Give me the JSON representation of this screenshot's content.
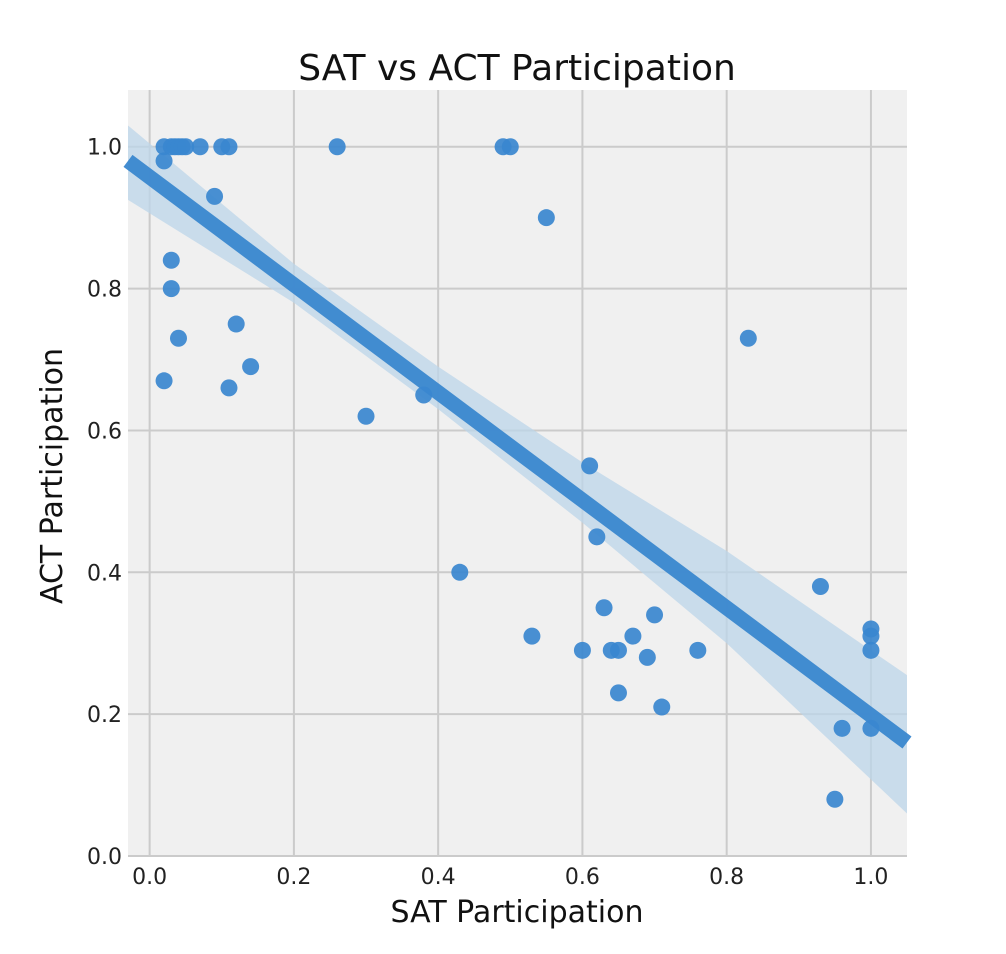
{
  "chart_data": {
    "type": "scatter",
    "title": "SAT vs ACT Participation",
    "xlabel": "SAT Participation",
    "ylabel": "ACT Participation",
    "xlim": [
      -0.03,
      1.05
    ],
    "ylim": [
      0.0,
      1.08
    ],
    "xticks": [
      0.0,
      0.2,
      0.4,
      0.6,
      0.8,
      1.0
    ],
    "xtick_labels": [
      "0.0",
      "0.2",
      "0.4",
      "0.6",
      "0.8",
      "1.0"
    ],
    "yticks": [
      0.0,
      0.2,
      0.4,
      0.6,
      0.8,
      1.0
    ],
    "ytick_labels": [
      "0.0",
      "0.2",
      "0.4",
      "0.6",
      "0.8",
      "1.0"
    ],
    "grid": true,
    "colors": {
      "background": "#f0f0f0",
      "point": "#3a87cf",
      "regression_line": "#3a87cf",
      "confidence_band": "#bcd6ea"
    },
    "points": [
      {
        "x": 0.02,
        "y": 1.0
      },
      {
        "x": 0.03,
        "y": 1.0
      },
      {
        "x": 0.035,
        "y": 1.0
      },
      {
        "x": 0.04,
        "y": 1.0
      },
      {
        "x": 0.045,
        "y": 1.0
      },
      {
        "x": 0.05,
        "y": 1.0
      },
      {
        "x": 0.07,
        "y": 1.0
      },
      {
        "x": 0.1,
        "y": 1.0
      },
      {
        "x": 0.11,
        "y": 1.0
      },
      {
        "x": 0.26,
        "y": 1.0
      },
      {
        "x": 0.49,
        "y": 1.0
      },
      {
        "x": 0.5,
        "y": 1.0
      },
      {
        "x": 0.02,
        "y": 0.98
      },
      {
        "x": 0.09,
        "y": 0.93
      },
      {
        "x": 0.55,
        "y": 0.9
      },
      {
        "x": 0.03,
        "y": 0.84
      },
      {
        "x": 0.03,
        "y": 0.8
      },
      {
        "x": 0.12,
        "y": 0.75
      },
      {
        "x": 0.04,
        "y": 0.73
      },
      {
        "x": 0.83,
        "y": 0.73
      },
      {
        "x": 0.14,
        "y": 0.69
      },
      {
        "x": 0.02,
        "y": 0.67
      },
      {
        "x": 0.11,
        "y": 0.66
      },
      {
        "x": 0.38,
        "y": 0.65
      },
      {
        "x": 0.3,
        "y": 0.62
      },
      {
        "x": 0.61,
        "y": 0.55
      },
      {
        "x": 0.62,
        "y": 0.45
      },
      {
        "x": 0.43,
        "y": 0.4
      },
      {
        "x": 0.93,
        "y": 0.38
      },
      {
        "x": 0.63,
        "y": 0.35
      },
      {
        "x": 0.7,
        "y": 0.34
      },
      {
        "x": 1.0,
        "y": 0.32
      },
      {
        "x": 0.53,
        "y": 0.31
      },
      {
        "x": 0.67,
        "y": 0.31
      },
      {
        "x": 1.0,
        "y": 0.31
      },
      {
        "x": 0.6,
        "y": 0.29
      },
      {
        "x": 0.64,
        "y": 0.29
      },
      {
        "x": 0.65,
        "y": 0.29
      },
      {
        "x": 0.76,
        "y": 0.29
      },
      {
        "x": 1.0,
        "y": 0.29
      },
      {
        "x": 0.69,
        "y": 0.28
      },
      {
        "x": 0.65,
        "y": 0.23
      },
      {
        "x": 0.71,
        "y": 0.21
      },
      {
        "x": 0.96,
        "y": 0.18
      },
      {
        "x": 1.0,
        "y": 0.18
      },
      {
        "x": 0.95,
        "y": 0.08
      }
    ],
    "regression": {
      "x": [
        -0.03,
        1.05
      ],
      "y": [
        0.98,
        0.16
      ]
    },
    "confidence_band": {
      "x": [
        -0.03,
        0.2,
        0.4,
        0.6,
        0.8,
        1.05
      ],
      "upper": [
        1.03,
        0.835,
        0.69,
        0.555,
        0.43,
        0.255
      ],
      "lower": [
        0.925,
        0.78,
        0.63,
        0.47,
        0.3,
        0.06
      ]
    }
  }
}
